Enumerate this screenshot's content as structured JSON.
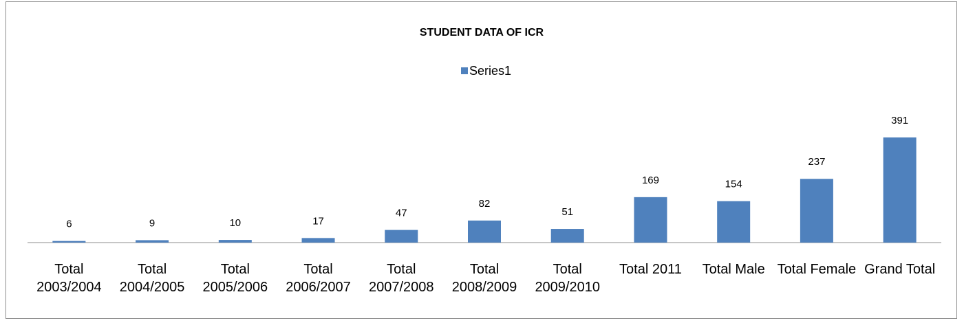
{
  "chart_data": {
    "type": "bar",
    "title": "STUDENT DATA OF ICR",
    "categories": [
      "Total 2003/2004",
      "Total 2004/2005",
      "Total 2005/2006",
      "Total 2006/2007",
      "Total 2007/2008",
      "Total 2008/2009",
      "Total 2009/2010",
      "Total 2011",
      "Total Male",
      "Total Female",
      "Grand Total"
    ],
    "series": [
      {
        "name": "Series1",
        "color": "#4f81bd",
        "values": [
          6,
          9,
          10,
          17,
          47,
          82,
          51,
          169,
          154,
          237,
          391
        ]
      }
    ],
    "legend": "top"
  }
}
